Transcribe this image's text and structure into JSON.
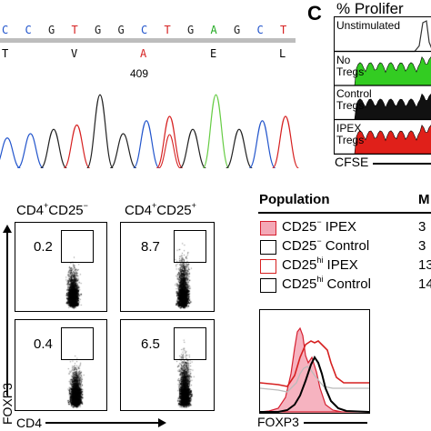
{
  "panel_a": {
    "sequence": [
      {
        "base": "C",
        "color": "#2255cc"
      },
      {
        "base": "C",
        "color": "#2255cc"
      },
      {
        "base": "G",
        "color": "#222222"
      },
      {
        "base": "T",
        "color": "#d62020"
      },
      {
        "base": "G",
        "color": "#222222"
      },
      {
        "base": "G",
        "color": "#222222"
      },
      {
        "base": "C",
        "color": "#2255cc"
      },
      {
        "base": "T",
        "color": "#d62020"
      },
      {
        "base": "G",
        "color": "#222222"
      },
      {
        "base": "A",
        "color": "#22aa22"
      },
      {
        "base": "G",
        "color": "#222222"
      },
      {
        "base": "C",
        "color": "#2255cc"
      },
      {
        "base": "T",
        "color": "#d62020"
      }
    ],
    "amino_acids": [
      {
        "aa": "T",
        "color": "#000000"
      },
      {
        "aa": "V",
        "color": "#000000"
      },
      {
        "aa": "A",
        "color": "#d62020"
      },
      {
        "aa": "E",
        "color": "#000000"
      },
      {
        "aa": "L",
        "color": "#000000"
      }
    ],
    "position_label": "409"
  },
  "panel_c": {
    "letter": "C",
    "title": "% Prolifer",
    "rows": [
      "Unstimulated",
      "No\nTregs",
      "Control\nTregs",
      "IPEX\nTregs"
    ],
    "xlabel": "CFSE",
    "colors": [
      "#ffffff",
      "#33cc22",
      "#111111",
      "#e0201a"
    ]
  },
  "panel_flow": {
    "col1_header": {
      "main": "CD4",
      "sup1": "+",
      "mid": "CD25",
      "sup2": "−"
    },
    "col2_header": {
      "main": "CD4",
      "sup1": "+",
      "mid": "CD25",
      "sup2": "+"
    },
    "values": [
      "0.2",
      "8.7",
      "0.4",
      "6.5"
    ],
    "ylabel": "FOXP3",
    "xlabel": "CD4"
  },
  "panel_table": {
    "header_population": "Population",
    "header_m": "M",
    "rows": [
      {
        "base": "CD25",
        "sup": "−",
        "label": " IPEX",
        "value": "3",
        "fill": "#f4a8b6",
        "border": "#d62030"
      },
      {
        "base": "CD25",
        "sup": "−",
        "label": " Control",
        "value": "3",
        "fill": "#ffffff",
        "border": "#000000"
      },
      {
        "base": "CD25",
        "sup": "hi",
        "label": " IPEX",
        "value": "13",
        "fill": "#ffffff",
        "border": "#d62020"
      },
      {
        "base": "CD25",
        "sup": "hi",
        "label": " Control",
        "value": "14",
        "fill": "#ffffff",
        "border": "#000000"
      }
    ],
    "hist_xlabel": "FOXP3"
  }
}
